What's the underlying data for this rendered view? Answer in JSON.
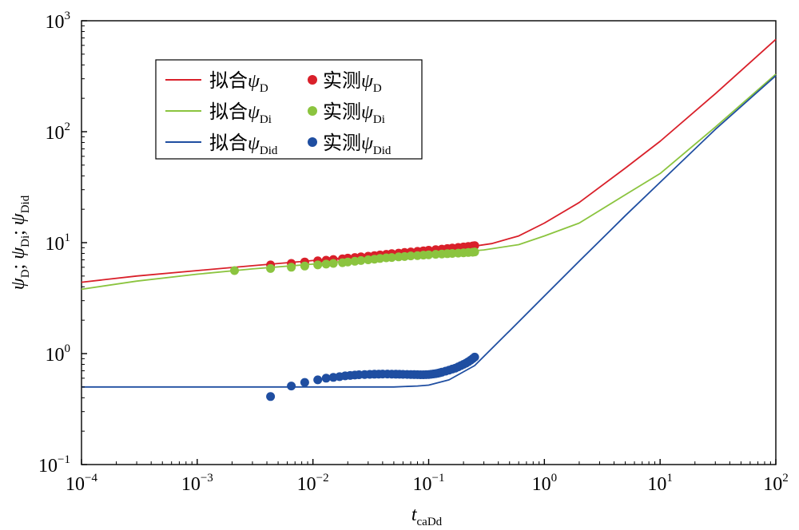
{
  "chart_data": {
    "type": "line",
    "xscale": "log",
    "yscale": "log",
    "xlim": [
      0.0001,
      100
    ],
    "ylim": [
      0.1,
      1000
    ],
    "grid": false,
    "legend_position": "top-left",
    "x_ticks": [
      {
        "base": "10",
        "exp": "−4",
        "value": 0.0001
      },
      {
        "base": "10",
        "exp": "−3",
        "value": 0.001
      },
      {
        "base": "10",
        "exp": "−2",
        "value": 0.01
      },
      {
        "base": "10",
        "exp": "−1",
        "value": 0.1
      },
      {
        "base": "10",
        "exp": "0",
        "value": 1
      },
      {
        "base": "10",
        "exp": "1",
        "value": 10
      },
      {
        "base": "10",
        "exp": "2",
        "value": 100
      }
    ],
    "y_ticks": [
      {
        "base": "10",
        "exp": "−1",
        "value": 0.1
      },
      {
        "base": "10",
        "exp": "0",
        "value": 1
      },
      {
        "base": "10",
        "exp": "1",
        "value": 10
      },
      {
        "base": "10",
        "exp": "2",
        "value": 100
      },
      {
        "base": "10",
        "exp": "3",
        "value": 1000
      }
    ],
    "xlabel": {
      "main": "t",
      "sub": "caDd"
    },
    "ylabel": [
      {
        "main": "ψ",
        "sub": "D",
        "sep": "; "
      },
      {
        "main": "ψ",
        "sub": "Di",
        "sep": "; "
      },
      {
        "main": "ψ",
        "sub": "Did",
        "sep": ""
      }
    ],
    "series": [
      {
        "name": {
          "prefix": "拟合",
          "symbol": "ψ",
          "sub": "D"
        },
        "kind": "line",
        "color": "#d9202a",
        "x": [
          0.0001,
          0.0003,
          0.001,
          0.003,
          0.01,
          0.03,
          0.1,
          0.2,
          0.35,
          0.6,
          1,
          2,
          5,
          10,
          30,
          100
        ],
        "y": [
          4.4,
          5.0,
          5.6,
          6.2,
          6.9,
          7.6,
          8.4,
          9.0,
          9.8,
          11.5,
          15,
          23,
          47,
          82,
          220,
          680
        ]
      },
      {
        "name": {
          "prefix": "实测",
          "symbol": "ψ",
          "sub": "D"
        },
        "kind": "scatter",
        "color": "#d9202a",
        "x": [
          0.0043,
          0.0065,
          0.0085,
          0.011,
          0.013,
          0.015,
          0.018,
          0.02,
          0.023,
          0.026,
          0.03,
          0.034,
          0.038,
          0.043,
          0.048,
          0.055,
          0.062,
          0.07,
          0.08,
          0.09,
          0.1,
          0.115,
          0.13,
          0.145,
          0.16,
          0.18,
          0.2,
          0.22,
          0.24,
          0.25
        ],
        "y": [
          6.3,
          6.5,
          6.7,
          6.85,
          6.95,
          7.05,
          7.15,
          7.25,
          7.35,
          7.45,
          7.55,
          7.65,
          7.75,
          7.85,
          7.95,
          8.05,
          8.15,
          8.25,
          8.35,
          8.45,
          8.55,
          8.65,
          8.75,
          8.85,
          8.95,
          9.05,
          9.15,
          9.25,
          9.35,
          9.4
        ]
      },
      {
        "name": {
          "prefix": "拟合",
          "symbol": "ψ",
          "sub": "Di"
        },
        "kind": "line",
        "color": "#8bc43f",
        "x": [
          0.0001,
          0.0003,
          0.001,
          0.003,
          0.01,
          0.03,
          0.1,
          0.3,
          0.6,
          1,
          2,
          5,
          10,
          30,
          100
        ],
        "y": [
          3.8,
          4.5,
          5.2,
          5.8,
          6.4,
          7.1,
          7.8,
          8.6,
          9.6,
          11.5,
          15,
          27,
          42,
          110,
          330
        ]
      },
      {
        "name": {
          "prefix": "实测",
          "symbol": "ψ",
          "sub": "Di"
        },
        "kind": "scatter",
        "color": "#8bc43f",
        "x": [
          0.0021,
          0.0043,
          0.0065,
          0.0085,
          0.011,
          0.013,
          0.015,
          0.018,
          0.02,
          0.023,
          0.026,
          0.03,
          0.034,
          0.038,
          0.043,
          0.048,
          0.055,
          0.062,
          0.07,
          0.08,
          0.09,
          0.1,
          0.115,
          0.13,
          0.145,
          0.16,
          0.18,
          0.2,
          0.22,
          0.24,
          0.25
        ],
        "y": [
          5.6,
          5.85,
          6.0,
          6.15,
          6.3,
          6.4,
          6.5,
          6.6,
          6.7,
          6.8,
          6.9,
          7.0,
          7.1,
          7.2,
          7.3,
          7.35,
          7.45,
          7.5,
          7.6,
          7.65,
          7.72,
          7.78,
          7.85,
          7.9,
          7.95,
          8.0,
          8.05,
          8.1,
          8.15,
          8.2,
          8.25
        ]
      },
      {
        "name": {
          "prefix": "拟合",
          "symbol": "ψ",
          "sub": "Did"
        },
        "kind": "line",
        "color": "#1f4ea1",
        "x": [
          0.0001,
          0.001,
          0.01,
          0.05,
          0.08,
          0.1,
          0.15,
          0.25,
          0.5,
          1,
          2,
          5,
          10,
          30,
          100
        ],
        "y": [
          0.5,
          0.5,
          0.5,
          0.5,
          0.51,
          0.52,
          0.58,
          0.78,
          1.6,
          3.3,
          6.8,
          17.5,
          35,
          105,
          320
        ]
      },
      {
        "name": {
          "prefix": "实测",
          "symbol": "ψ",
          "sub": "Did"
        },
        "kind": "scatter",
        "color": "#1f4ea1",
        "x": [
          0.0043,
          0.0065,
          0.0085,
          0.011,
          0.013,
          0.015,
          0.017,
          0.019,
          0.021,
          0.023,
          0.025,
          0.028,
          0.031,
          0.034,
          0.037,
          0.04,
          0.044,
          0.048,
          0.052,
          0.056,
          0.06,
          0.065,
          0.07,
          0.075,
          0.08,
          0.085,
          0.09,
          0.095,
          0.1,
          0.105,
          0.11,
          0.115,
          0.12,
          0.125,
          0.13,
          0.14,
          0.15,
          0.16,
          0.17,
          0.18,
          0.19,
          0.2,
          0.21,
          0.22,
          0.23,
          0.24,
          0.25
        ],
        "y": [
          0.41,
          0.51,
          0.55,
          0.58,
          0.6,
          0.61,
          0.62,
          0.63,
          0.635,
          0.64,
          0.645,
          0.648,
          0.65,
          0.652,
          0.653,
          0.654,
          0.654,
          0.653,
          0.652,
          0.651,
          0.65,
          0.649,
          0.648,
          0.647,
          0.646,
          0.645,
          0.645,
          0.646,
          0.648,
          0.651,
          0.655,
          0.66,
          0.665,
          0.672,
          0.68,
          0.695,
          0.71,
          0.725,
          0.74,
          0.76,
          0.78,
          0.8,
          0.82,
          0.845,
          0.87,
          0.9,
          0.93
        ]
      }
    ]
  }
}
